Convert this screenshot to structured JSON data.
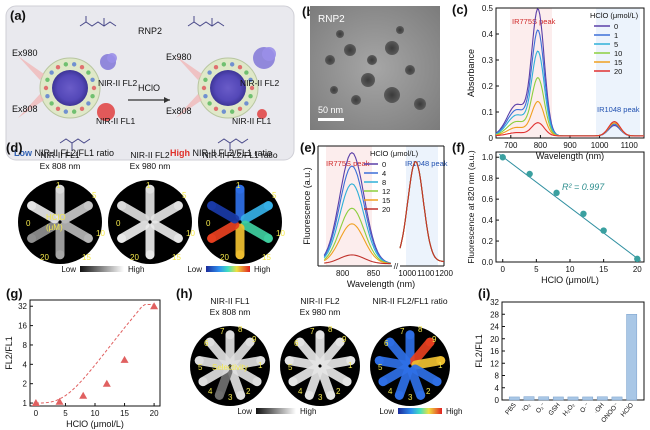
{
  "panels": {
    "a": {
      "label": "(a)",
      "rnp": "RNP2",
      "hclo": "HClO",
      "ex980": "Ex980",
      "ex808": "Ex808",
      "fl2": "NIR-II FL2",
      "fl1": "NIR-II FL1",
      "low_word": "Low",
      "high_word": "High",
      "ratio_suffix": " NIR-II FL2/FL1 ratio",
      "colors": {
        "low": "#2e5fb3",
        "high": "#e0302a"
      }
    },
    "b": {
      "label": "(b)",
      "title": "RNP2",
      "scalebar": "50 nm"
    },
    "c": {
      "label": "(c)",
      "peak1": "IR775S peak",
      "peak2": "IR1048 peak"
    },
    "d": {
      "label": "(d)",
      "titles": [
        "NIR-II FL1\nEx 808 nm",
        "NIR-II FL2\nEx 980 nm",
        "NIR-II FL2/FL1 ratio"
      ],
      "tube_labels": [
        "1",
        "5",
        "10",
        "15",
        "20",
        "0"
      ],
      "center_text": "HClO",
      "center_unit": "(μM)",
      "low": "Low",
      "high": "High"
    },
    "e": {
      "label": "(e)",
      "peak1": "IR775S peak",
      "peak2": "IR1048 peak"
    },
    "f": {
      "label": "(f)",
      "r2": "R² = 0.997"
    },
    "g": {
      "label": "(g)"
    },
    "h": {
      "label": "(h)",
      "titles": [
        "NIR-II FL1\nEx 808 nm",
        "NIR-II FL2\nEx 980 nm",
        "NIR-II FL2/FL1 ratio"
      ],
      "tube_labels": [
        "7",
        "8",
        "9",
        "1",
        "2",
        "3",
        "4",
        "5",
        "6"
      ],
      "center_text": "Selectivity",
      "low": "Low",
      "high": "High"
    },
    "i": {
      "label": "(i)"
    }
  },
  "chart_data": [
    {
      "panel": "c",
      "type": "line",
      "xlabel": "Wavelength (nm)",
      "ylabel": "Absorbance",
      "xlim": [
        650,
        1150
      ],
      "ylim": [
        0,
        0.5
      ],
      "xticks": [
        700,
        800,
        900,
        1000,
        1100
      ],
      "yticks": [
        0,
        0.1,
        0.2,
        0.3,
        0.4,
        0.5
      ],
      "legend_title": "HClO (μmol/L)",
      "legend_position": "top-right",
      "series": [
        {
          "name": "0",
          "color": "#5b3fa8",
          "peak": 0.48,
          "peak2": 0.04
        },
        {
          "name": "1",
          "color": "#3c6fd8",
          "peak": 0.4,
          "peak2": 0.045
        },
        {
          "name": "5",
          "color": "#2fb0d8",
          "peak": 0.32,
          "peak2": 0.05
        },
        {
          "name": "10",
          "color": "#8ccf3e",
          "peak": 0.22,
          "peak2": 0.05
        },
        {
          "name": "15",
          "color": "#f0a020",
          "peak": 0.13,
          "peak2": 0.05
        },
        {
          "name": "20",
          "color": "#e03030",
          "peak": 0.05,
          "peak2": 0.055
        }
      ]
    },
    {
      "panel": "e",
      "type": "line",
      "xlabel": "Wavelength (nm)",
      "ylabel": "Fluorescence (a.u.)",
      "xticks_left": [
        800,
        850
      ],
      "xticks_right": [
        1000,
        1100,
        1200
      ],
      "legend_title": "HClO (μmol/L)",
      "legend_position": "top-center",
      "series": [
        {
          "name": "0",
          "color": "#5b3fa8",
          "peak": 1.0,
          "peak2": 0.9
        },
        {
          "name": "4",
          "color": "#3c6fd8",
          "peak": 0.88,
          "peak2": 0.9
        },
        {
          "name": "8",
          "color": "#2fb0d8",
          "peak": 0.72,
          "peak2": 0.9
        },
        {
          "name": "12",
          "color": "#8ccf3e",
          "peak": 0.5,
          "peak2": 0.9
        },
        {
          "name": "15",
          "color": "#f0a020",
          "peak": 0.36,
          "peak2": 0.9
        },
        {
          "name": "20",
          "color": "#c0302a",
          "peak": 0.08,
          "peak2": 0.9
        }
      ]
    },
    {
      "panel": "f",
      "type": "scatter",
      "xlabel": "HClO (μmol/L)",
      "ylabel": "Fluorescence at 820 nm (a.u.)",
      "xlim": [
        -1,
        21
      ],
      "ylim": [
        0,
        1.05
      ],
      "xticks": [
        0,
        5,
        10,
        15,
        20
      ],
      "yticks": [
        0,
        0.2,
        0.4,
        0.6,
        0.8,
        1.0
      ],
      "x": [
        0,
        4,
        8,
        12,
        15,
        20
      ],
      "y": [
        1.0,
        0.84,
        0.66,
        0.46,
        0.3,
        0.03
      ],
      "fit": {
        "slope": -0.0485,
        "intercept": 1.005
      },
      "color": "#3aa0a0"
    },
    {
      "panel": "g",
      "type": "scatter",
      "xlabel": "HClO (μmol/L)",
      "ylabel": "FL2/FL1",
      "xlim": [
        -1,
        21
      ],
      "ylim_log": [
        0.9,
        40
      ],
      "xticks": [
        0,
        5,
        10,
        15,
        20
      ],
      "yticks": [
        1,
        2,
        4,
        8,
        16,
        32
      ],
      "x": [
        0,
        4,
        8,
        12,
        15,
        20
      ],
      "y": [
        1.0,
        1.05,
        1.3,
        2.0,
        4.7,
        32
      ],
      "color": "#e06060"
    },
    {
      "panel": "i",
      "type": "bar",
      "ylabel": "FL2/FL1",
      "categories": [
        "PBS",
        "¹O₂",
        "O₂⁻",
        "GSH",
        "H₂O₂",
        "O·⁻",
        "·OH",
        "ONOO⁻",
        "HClO"
      ],
      "values": [
        1.0,
        1.1,
        1.05,
        1.0,
        1.0,
        1.0,
        1.05,
        1.0,
        28.0
      ],
      "ylim": [
        0,
        32
      ],
      "yticks": [
        0,
        4,
        8,
        12,
        16,
        20,
        24,
        28,
        32
      ],
      "color": "#a9c7e6"
    }
  ]
}
